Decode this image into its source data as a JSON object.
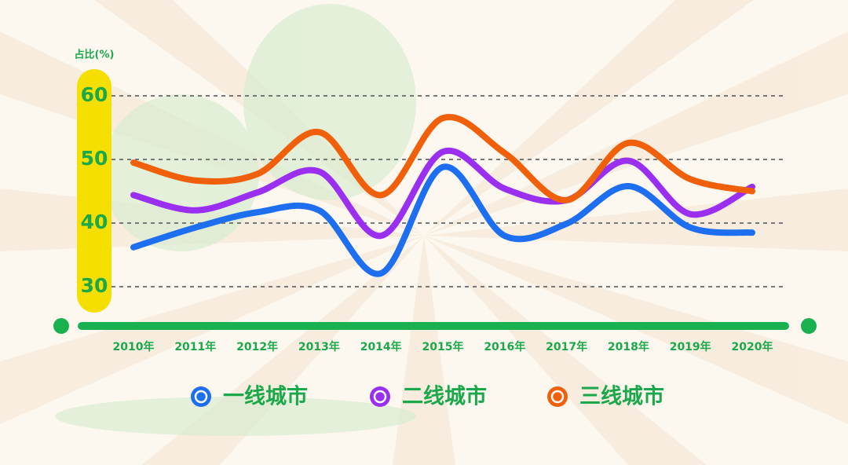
{
  "chart_data": {
    "type": "line",
    "y_label": "占比(%)",
    "categories": [
      "2010年",
      "2011年",
      "2012年",
      "2013年",
      "2014年",
      "2015年",
      "2016年",
      "2017年",
      "2018年",
      "2019年",
      "2020年"
    ],
    "series": [
      {
        "name": "一线城市",
        "color": "#1e6ff0",
        "values": [
          36.2,
          39.3,
          41.7,
          42.0,
          32.1,
          48.8,
          38.0,
          39.9,
          45.8,
          39.3,
          38.5
        ]
      },
      {
        "name": "二线城市",
        "color": "#9a2ff0",
        "values": [
          44.4,
          42.0,
          44.8,
          48.1,
          38.0,
          51.2,
          45.4,
          43.6,
          49.8,
          41.4,
          45.7
        ]
      },
      {
        "name": "三线城市",
        "color": "#f0600a",
        "values": [
          49.5,
          46.7,
          47.7,
          54.3,
          44.4,
          56.5,
          51.0,
          43.6,
          52.6,
          46.9,
          45.0
        ]
      }
    ],
    "ylim": [
      24,
      63
    ],
    "yticks": [
      30,
      40,
      50,
      60
    ],
    "grid": true,
    "smooth": true
  }
}
